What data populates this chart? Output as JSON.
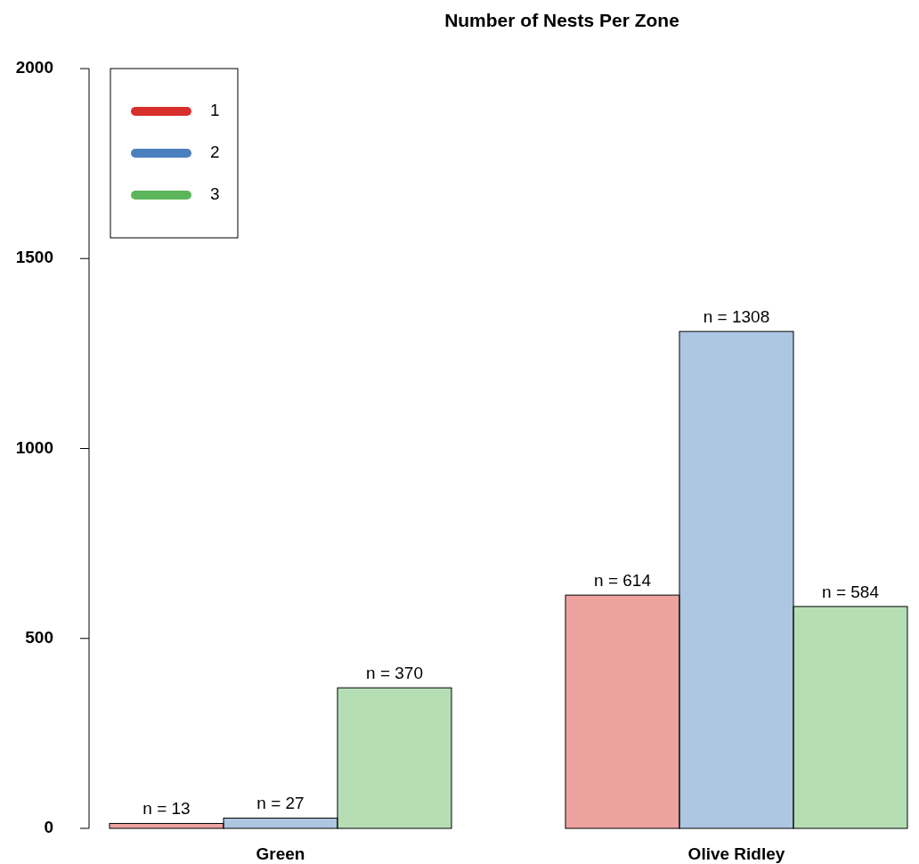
{
  "chart_data": {
    "type": "bar",
    "title": "Number of Nests Per Zone",
    "categories": [
      "Green",
      "Olive Ridley"
    ],
    "series": [
      {
        "name": "1",
        "color": "#d7302c",
        "values": [
          13,
          614
        ],
        "value_labels": [
          "n = 13",
          "n = 614"
        ]
      },
      {
        "name": "2",
        "color": "#4a80bd",
        "values": [
          27,
          1308
        ],
        "value_labels": [
          "n = 27",
          "n = 1308"
        ]
      },
      {
        "name": "3",
        "color": "#5db55b",
        "values": [
          370,
          584
        ],
        "value_labels": [
          "n = 370",
          "n = 584"
        ]
      }
    ],
    "ylim": [
      0,
      2000
    ],
    "yticks": [
      0,
      500,
      1000,
      1500,
      2000
    ],
    "legend": "top left",
    "grid": false
  }
}
